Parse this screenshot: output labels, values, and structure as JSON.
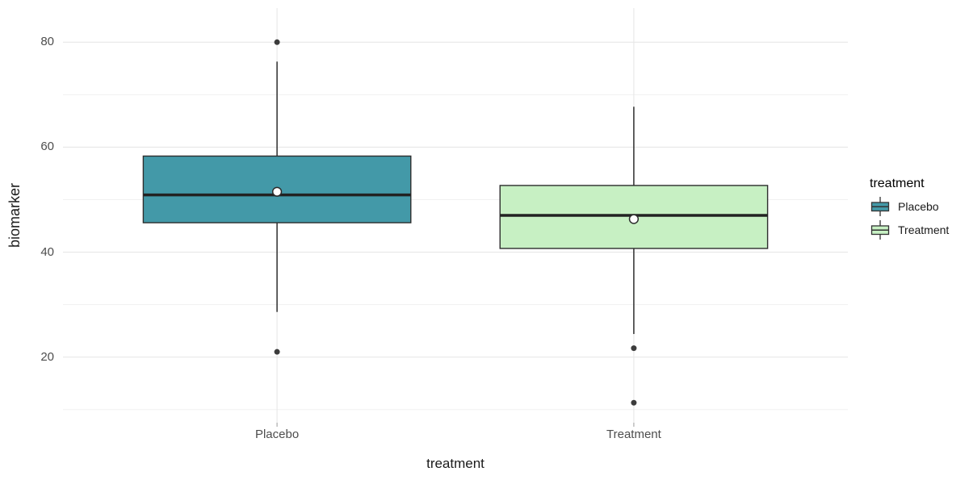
{
  "figure_title": "",
  "axes": {
    "xlabel": "treatment",
    "ylabel": "biomarker"
  },
  "legend": {
    "title": "treatment",
    "entries": [
      {
        "label": "Placebo",
        "fill": "#4399A8"
      },
      {
        "label": "Treatment",
        "fill": "#C7F0C3"
      }
    ]
  },
  "colors": {
    "box_stroke": "#2E2E2E",
    "median": "#222222",
    "whisker": "#2E2E2E",
    "outlier": "#3C3C3C",
    "mean_fill": "#FFFFFF",
    "mean_stroke": "#2B2B2B",
    "grid_major": "#E7E7E7",
    "grid_minor": "#F1F1F1",
    "axis_tick": "#ABABAB",
    "tick_text": "#4D4D4D",
    "title_text": "#1A1A1A",
    "background": "#FFFFFF"
  },
  "chart_data": {
    "type": "boxplot",
    "title": "",
    "xlabel": "treatment",
    "ylabel": "biomarker",
    "categories": [
      "Placebo",
      "Treatment"
    ],
    "y_ticks": [
      20,
      40,
      60,
      80
    ],
    "y_minor_ticks": [
      10,
      30,
      50,
      70
    ],
    "ylim": [
      7.5,
      86.5
    ],
    "grid": true,
    "legend_position": "right",
    "box_width_fraction": 0.75,
    "series": [
      {
        "name": "Placebo",
        "fill": "#4399A8",
        "q1": 45.6,
        "median": 50.9,
        "q3": 58.3,
        "whisker_low": 28.6,
        "whisker_high": 76.3,
        "mean": 51.5,
        "outliers": [
          80,
          21
        ]
      },
      {
        "name": "Treatment",
        "fill": "#C7F0C3",
        "q1": 40.7,
        "median": 47,
        "q3": 52.7,
        "whisker_low": 24.4,
        "whisker_high": 67.7,
        "mean": 46.3,
        "outliers": [
          21.7,
          11.3
        ]
      }
    ]
  }
}
